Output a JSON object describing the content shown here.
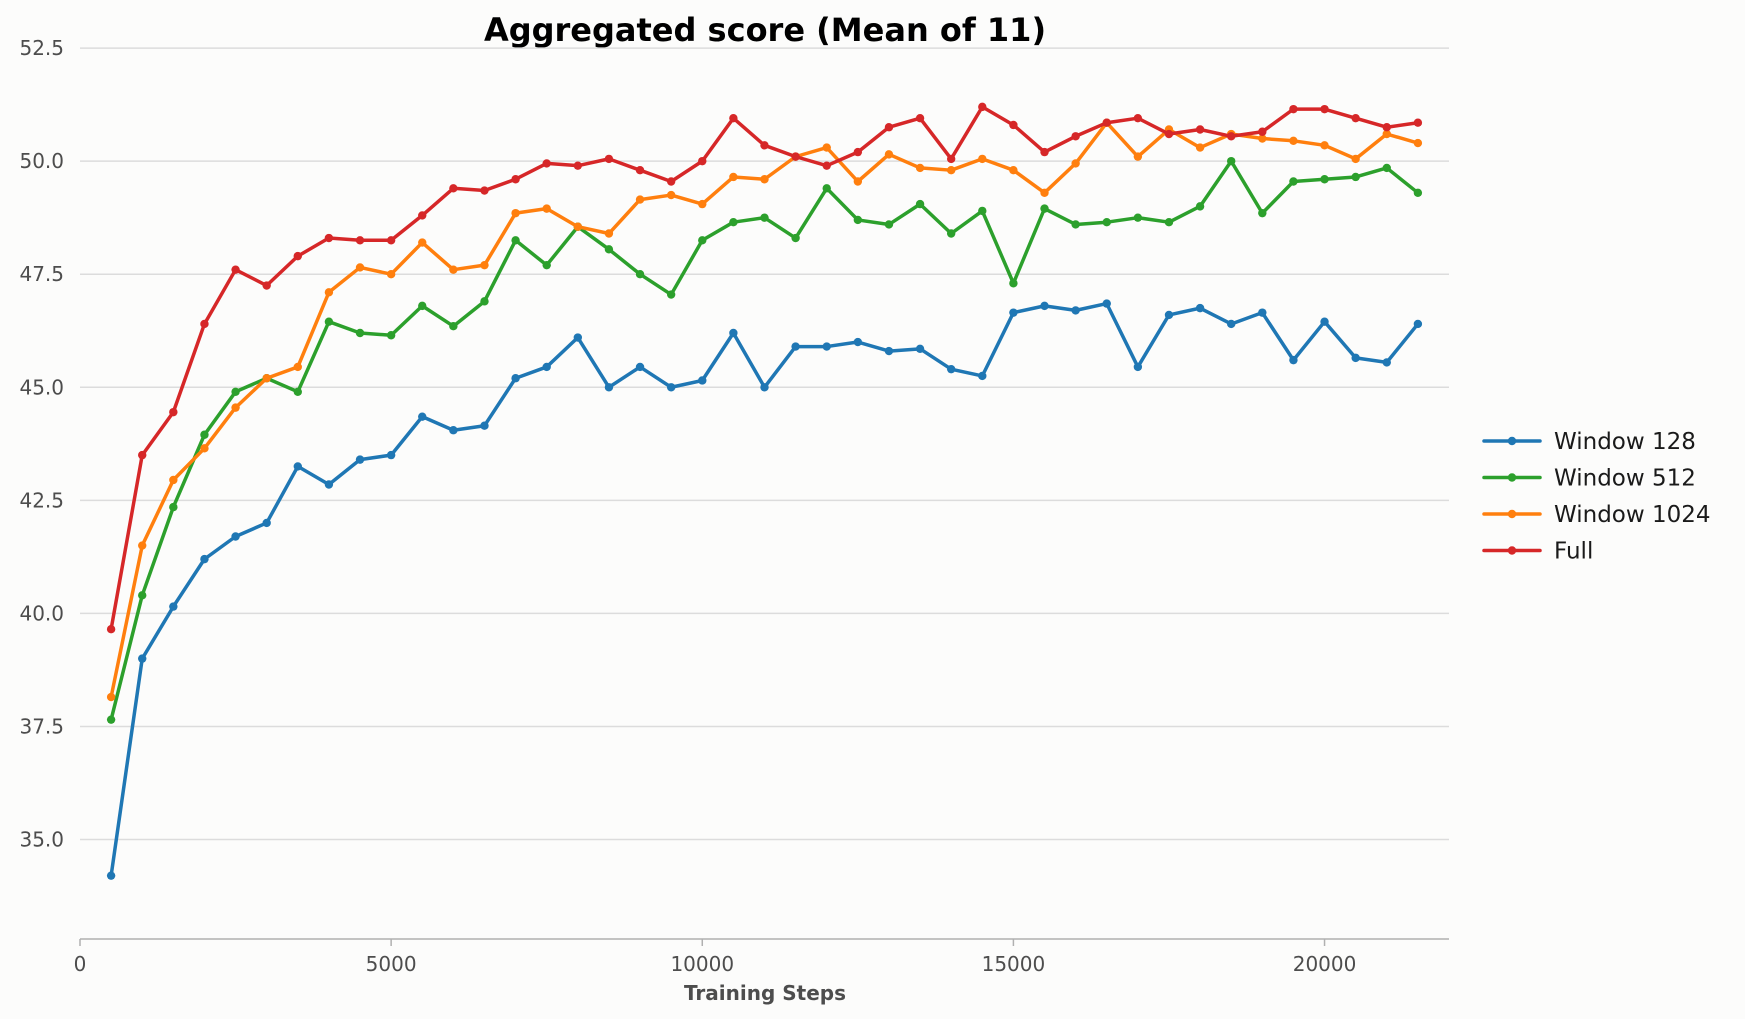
{
  "chart_data": {
    "type": "line",
    "title": "Aggregated score (Mean of 11)",
    "xlabel": "Training Steps",
    "ylabel": "",
    "xlim": [
      0,
      22000
    ],
    "ylim": [
      32.8,
      52.9
    ],
    "x_ticks": [
      0,
      5000,
      10000,
      15000,
      20000
    ],
    "x_tick_labels": [
      "0",
      "5000",
      "10000",
      "15000",
      "20000"
    ],
    "y_ticks": [
      35.0,
      37.5,
      40.0,
      42.5,
      45.0,
      47.5,
      50.0,
      52.5
    ],
    "y_tick_labels": [
      "35.0",
      "37.5",
      "40.0",
      "42.5",
      "45.0",
      "47.5",
      "50.0",
      "52.5"
    ],
    "grid": "horizontal",
    "legend_position": "right",
    "x": [
      500,
      1000,
      1500,
      2000,
      2500,
      3000,
      3500,
      4000,
      4500,
      5000,
      5500,
      6000,
      6500,
      7000,
      7500,
      8000,
      8500,
      9000,
      9500,
      10000,
      10500,
      11000,
      11500,
      12000,
      12500,
      13000,
      13500,
      14000,
      14500,
      15000,
      15500,
      16000,
      16500,
      17000,
      17500,
      18000,
      18500,
      19000,
      19500,
      20000,
      20500,
      21000,
      21500
    ],
    "series": [
      {
        "name": "Window 128",
        "color": "#1f77b4",
        "values": [
          34.2,
          39.0,
          40.15,
          41.2,
          41.7,
          42.0,
          43.25,
          42.85,
          43.4,
          43.5,
          44.35,
          44.05,
          44.15,
          45.2,
          45.45,
          46.1,
          45.0,
          45.45,
          45.0,
          45.15,
          46.2,
          45.0,
          45.9,
          45.9,
          46.0,
          45.8,
          45.85,
          45.4,
          45.25,
          46.65,
          46.8,
          46.7,
          46.85,
          45.45,
          46.6,
          46.75,
          46.4,
          46.65,
          45.6,
          46.45,
          45.65,
          45.55,
          46.4
        ]
      },
      {
        "name": "Window 512",
        "color": "#2ca02c",
        "values": [
          37.65,
          40.4,
          42.35,
          43.95,
          44.9,
          45.2,
          44.9,
          46.45,
          46.2,
          46.15,
          46.8,
          46.35,
          46.9,
          48.25,
          47.7,
          48.55,
          48.05,
          47.5,
          47.05,
          48.25,
          48.65,
          48.75,
          48.3,
          49.4,
          48.7,
          48.6,
          49.05,
          48.4,
          48.9,
          47.3,
          48.95,
          48.6,
          48.65,
          48.75,
          48.65,
          49.0,
          50.0,
          48.85,
          49.55,
          49.6,
          49.65,
          49.85,
          49.3
        ]
      },
      {
        "name": "Window 1024",
        "color": "#ff7f0e",
        "values": [
          38.15,
          41.5,
          42.95,
          43.65,
          44.55,
          45.2,
          45.45,
          47.1,
          47.65,
          47.5,
          48.2,
          47.6,
          47.7,
          48.85,
          48.95,
          48.55,
          48.4,
          49.15,
          49.25,
          49.05,
          49.65,
          49.6,
          50.1,
          50.3,
          49.55,
          50.15,
          49.85,
          49.8,
          50.05,
          49.8,
          49.3,
          49.95,
          50.85,
          50.1,
          50.7,
          50.3,
          50.6,
          50.5,
          50.45,
          50.35,
          50.05,
          50.6,
          50.4
        ]
      },
      {
        "name": "Full",
        "color": "#d62728",
        "values": [
          39.65,
          43.5,
          44.45,
          46.4,
          47.6,
          47.25,
          47.9,
          48.3,
          48.25,
          48.25,
          48.8,
          49.4,
          49.35,
          49.6,
          49.95,
          49.9,
          50.05,
          49.8,
          49.55,
          50.0,
          50.95,
          50.35,
          50.1,
          49.9,
          50.2,
          50.75,
          50.95,
          50.05,
          51.2,
          50.8,
          50.2,
          50.55,
          50.85,
          50.95,
          50.6,
          50.7,
          50.55,
          50.65,
          51.15,
          51.15,
          50.95,
          50.75,
          50.85
        ]
      }
    ]
  }
}
